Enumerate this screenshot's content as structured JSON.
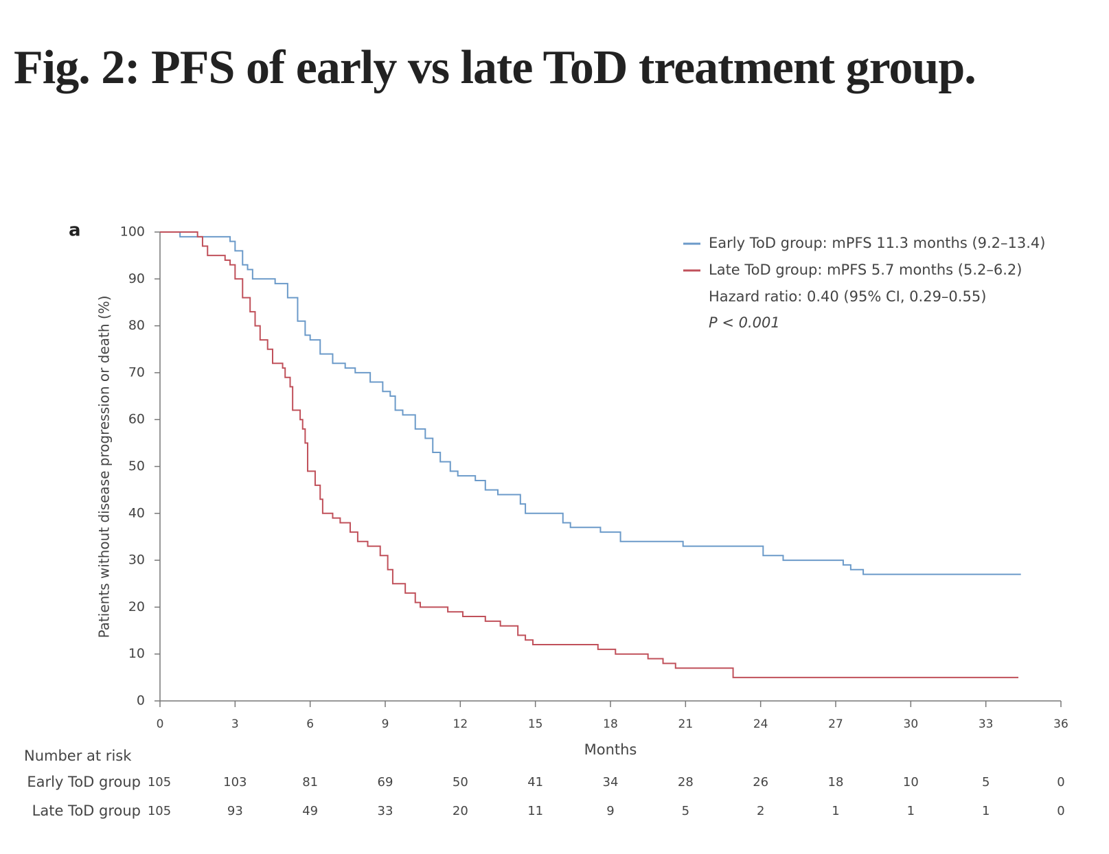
{
  "chart_data": {
    "type": "line",
    "step": "post",
    "title": "Fig. 2: PFS of early vs late ToD treatment group.",
    "panel_label": "a",
    "x_label": "Months",
    "y_label": "Patients without disease progression or death (%)",
    "xlim": [
      0,
      36
    ],
    "xticks": [
      0,
      3,
      6,
      9,
      12,
      15,
      18,
      21,
      24,
      27,
      30,
      33,
      36
    ],
    "ylim": [
      0,
      100
    ],
    "yticks": [
      0,
      10,
      20,
      30,
      40,
      50,
      60,
      70,
      80,
      90,
      100
    ],
    "series": [
      {
        "name": "Early ToD group: mPFS 11.3 months (9.2–13.4)",
        "color": "#6b9ac9",
        "x": [
          0,
          0.8,
          2.8,
          3.0,
          3.3,
          3.5,
          3.7,
          4.6,
          5.1,
          5.5,
          5.8,
          6.0,
          6.4,
          6.9,
          7.4,
          7.8,
          8.4,
          8.9,
          9.2,
          9.4,
          9.7,
          10.2,
          10.6,
          10.9,
          11.2,
          11.6,
          11.9,
          12.6,
          13.0,
          13.5,
          14.4,
          14.6,
          16.1,
          16.4,
          17.6,
          18.4,
          20.9,
          24.1,
          24.9,
          27.3,
          27.6,
          28.1,
          34.4
        ],
        "values": [
          100,
          99,
          98,
          96,
          93,
          92,
          90,
          89,
          86,
          81,
          78,
          77,
          74,
          72,
          71,
          70,
          68,
          66,
          65,
          62,
          61,
          58,
          56,
          53,
          51,
          49,
          48,
          47,
          45,
          44,
          42,
          40,
          38,
          37,
          36,
          34,
          33,
          31,
          30,
          29,
          28,
          27,
          27
        ]
      },
      {
        "name": "Late ToD group: mPFS 5.7 months (5.2–6.2)",
        "color": "#c0505a",
        "x": [
          0,
          1.5,
          1.7,
          1.9,
          2.6,
          2.8,
          3.0,
          3.3,
          3.6,
          3.8,
          4.0,
          4.3,
          4.5,
          4.9,
          5.0,
          5.2,
          5.3,
          5.6,
          5.7,
          5.8,
          5.9,
          6.2,
          6.4,
          6.5,
          6.9,
          7.2,
          7.6,
          7.9,
          8.3,
          8.8,
          9.1,
          9.3,
          9.8,
          10.2,
          10.4,
          11.5,
          12.1,
          13.0,
          13.6,
          14.3,
          14.6,
          14.9,
          17.5,
          18.2,
          19.5,
          20.1,
          20.6,
          22.9,
          34.3
        ],
        "values": [
          100,
          99,
          97,
          95,
          94,
          93,
          90,
          86,
          83,
          80,
          77,
          75,
          72,
          71,
          69,
          67,
          62,
          60,
          58,
          55,
          49,
          46,
          43,
          40,
          39,
          38,
          36,
          34,
          33,
          31,
          28,
          25,
          23,
          21,
          20,
          19,
          18,
          17,
          16,
          14,
          13,
          12,
          11,
          10,
          9,
          8,
          7,
          5,
          5
        ]
      }
    ],
    "annotations": [
      "Hazard ratio: 0.40 (95% CI, 0.29–0.55)",
      "P < 0.001"
    ],
    "risk_table": {
      "title": "Number at risk",
      "rows": [
        {
          "label": "Early ToD group",
          "values": [
            105,
            103,
            81,
            69,
            50,
            41,
            34,
            28,
            26,
            18,
            10,
            5,
            0
          ]
        },
        {
          "label": "Late ToD group",
          "values": [
            105,
            93,
            49,
            33,
            20,
            11,
            9,
            5,
            2,
            1,
            1,
            1,
            0
          ]
        }
      ]
    }
  }
}
